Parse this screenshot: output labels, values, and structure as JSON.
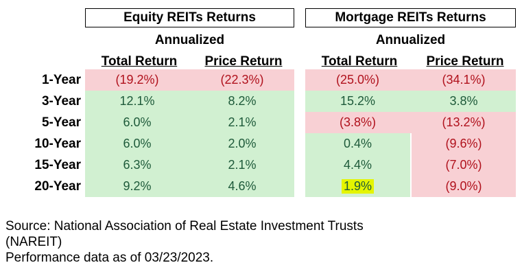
{
  "equity": {
    "title": "Equity REITs Returns",
    "subtitle": "Annualized",
    "col_total": "Total Return",
    "col_price": "Price Return"
  },
  "mortgage": {
    "title": "Mortgage REITs Returns",
    "subtitle": "Annualized",
    "col_total": "Total Return",
    "col_price": "Price Return"
  },
  "rows": [
    {
      "label": "1-Year",
      "eq_total": "(19.2%)",
      "eq_price": "(22.3%)",
      "mo_total": "(25.0%)",
      "mo_price": "(34.1%)"
    },
    {
      "label": "3-Year",
      "eq_total": "12.1%",
      "eq_price": "8.2%",
      "mo_total": "15.2%",
      "mo_price": "3.8%"
    },
    {
      "label": "5-Year",
      "eq_total": "6.0%",
      "eq_price": "2.1%",
      "mo_total": "(3.8%)",
      "mo_price": "(13.2%)"
    },
    {
      "label": "10-Year",
      "eq_total": "6.0%",
      "eq_price": "2.0%",
      "mo_total": "0.4%",
      "mo_price": "(9.6%)"
    },
    {
      "label": "15-Year",
      "eq_total": "6.3%",
      "eq_price": "2.1%",
      "mo_total": "4.4%",
      "mo_price": "(7.0%)"
    },
    {
      "label": "20-Year",
      "eq_total": "9.2%",
      "eq_price": "4.6%",
      "mo_total": "1.9%",
      "mo_price": "(9.0%)"
    }
  ],
  "colors": {
    "positive_bg": "#d1f0d1",
    "negative_bg": "#f8d0d4",
    "highlight": "#e4f500"
  },
  "source": {
    "line1": "Source: National Association of Real Estate Investment Trusts",
    "line2": "(NAREIT)",
    "line3": "Performance data as of 03/23/2023."
  }
}
